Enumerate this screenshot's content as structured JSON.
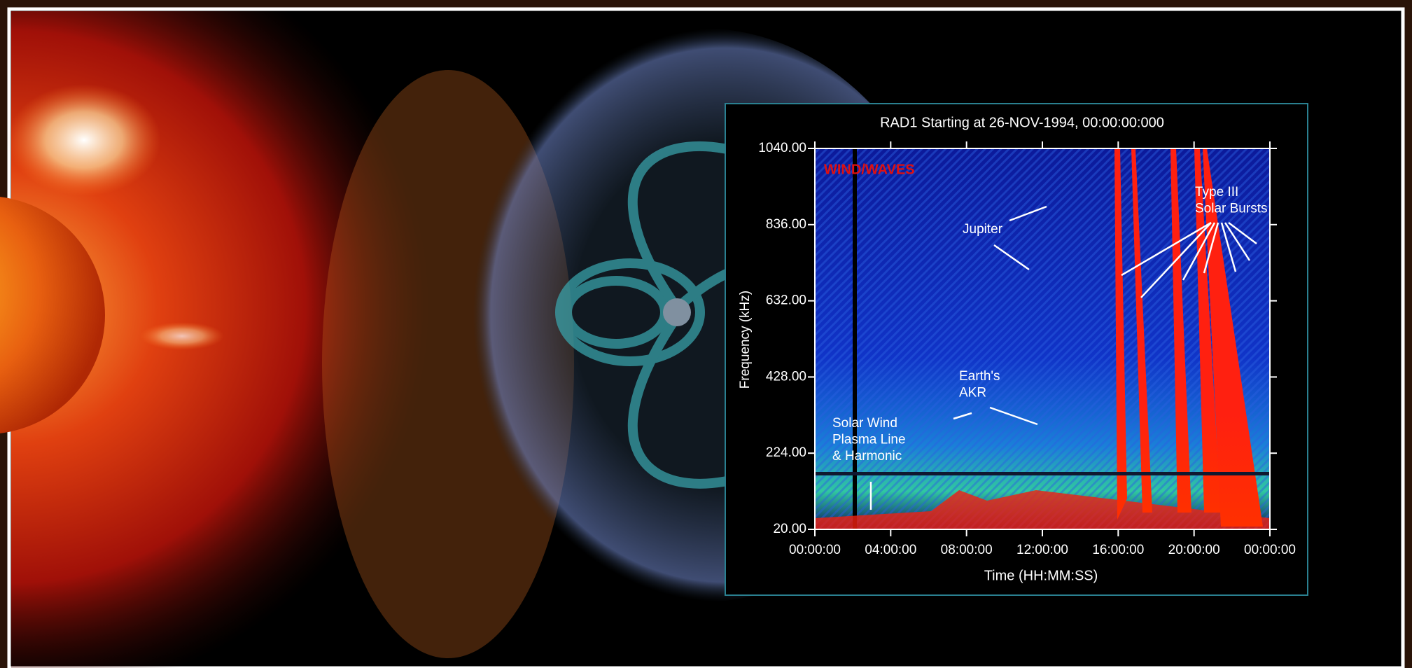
{
  "chart_data": {
    "type": "spectrogram",
    "title": "RAD1 Starting at 26-NOV-1994, 00:00:00:000",
    "x_label": "Time (HH:MM:SS)",
    "y_label": "Frequency (kHz)",
    "xlim": [
      0,
      24
    ],
    "xticks": [
      {
        "value": 0,
        "label": "00:00:00"
      },
      {
        "value": 4,
        "label": "04:00:00"
      },
      {
        "value": 8,
        "label": "08:00:00"
      },
      {
        "value": 12,
        "label": "12:00:00"
      },
      {
        "value": 16,
        "label": "16:00:00"
      },
      {
        "value": 20,
        "label": "20:00:00"
      },
      {
        "value": 24,
        "label": "00:00:00"
      }
    ],
    "ylim": [
      20,
      1040
    ],
    "yticks": [
      {
        "value": 20,
        "label": "20.00"
      },
      {
        "value": 224,
        "label": "224.00"
      },
      {
        "value": 428,
        "label": "428.00"
      },
      {
        "value": 632,
        "label": "632.00"
      },
      {
        "value": 836,
        "label": "836.00"
      },
      {
        "value": 1040,
        "label": "1040.00"
      }
    ],
    "instrument": "WIND/WAVES",
    "annotations": [
      {
        "lines": [
          "Jupiter"
        ]
      },
      {
        "lines": [
          "Type III",
          "Solar Bursts"
        ]
      },
      {
        "lines": [
          "Earth's",
          "AKR"
        ]
      },
      {
        "lines": [
          "Solar Wind",
          "Plasma Line",
          "& Harmonic"
        ]
      }
    ]
  }
}
